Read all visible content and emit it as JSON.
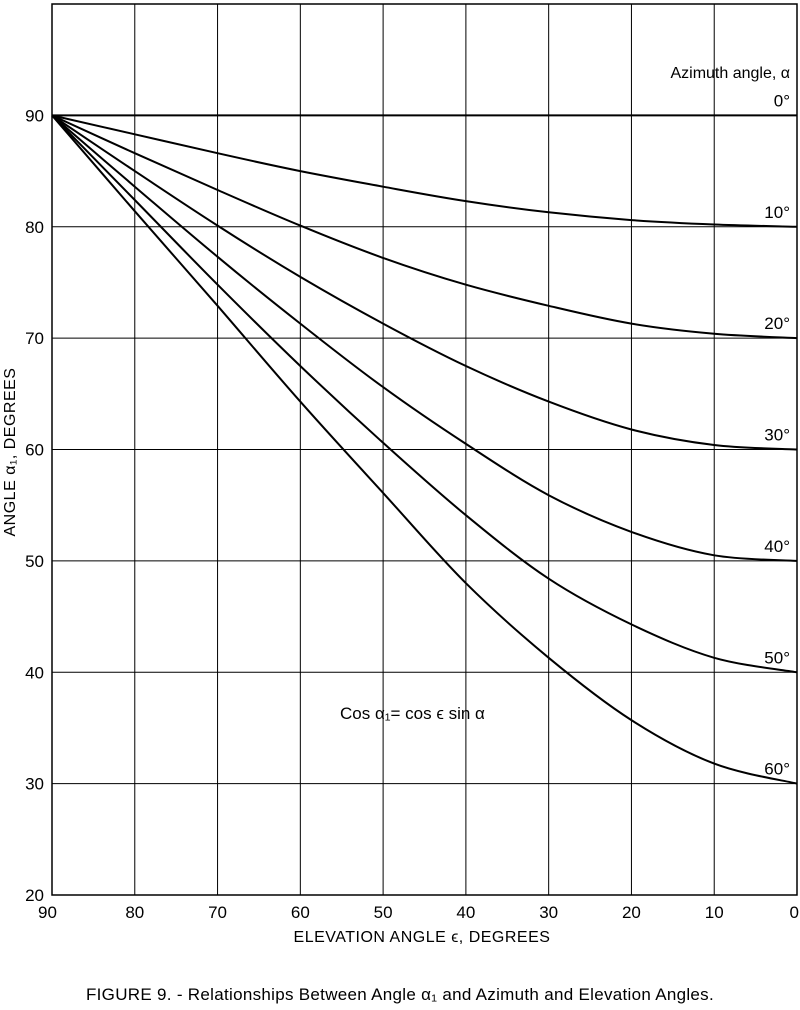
{
  "chart_data": {
    "type": "line",
    "xlabel": "ELEVATION ANGLE ϵ, DEGREES",
    "ylabel": "ANGLE α₁, DEGREES",
    "x_ticks": [
      "90",
      "80",
      "70",
      "60",
      "50",
      "40",
      "30",
      "20",
      "10",
      "0"
    ],
    "y_ticks": [
      "20",
      "30",
      "40",
      "50",
      "60",
      "70",
      "80",
      "90"
    ],
    "xlim": [
      90,
      0
    ],
    "ylim": [
      20,
      100
    ],
    "x_reversed": true,
    "grid": true,
    "legend_title": "Azimuth angle, α",
    "annotation": "Cos α₁= cos ϵ sin α",
    "x": [
      90,
      80,
      70,
      60,
      50,
      40,
      30,
      20,
      10,
      0
    ],
    "series": [
      {
        "name": "0°",
        "values": [
          90,
          90,
          90,
          90,
          90,
          90,
          90,
          90,
          90,
          90
        ]
      },
      {
        "name": "10°",
        "values": [
          90,
          88.3,
          86.6,
          85.0,
          83.6,
          82.3,
          81.3,
          80.6,
          80.2,
          80.0
        ]
      },
      {
        "name": "20°",
        "values": [
          90,
          86.6,
          83.3,
          80.1,
          77.2,
          74.8,
          72.9,
          71.3,
          70.4,
          70.0
        ]
      },
      {
        "name": "30°",
        "values": [
          90,
          85.0,
          80.1,
          75.5,
          71.3,
          67.5,
          64.3,
          61.8,
          60.4,
          60.0
        ]
      },
      {
        "name": "40°",
        "values": [
          90,
          83.6,
          77.3,
          71.3,
          65.6,
          60.5,
          55.9,
          52.6,
          50.5,
          50.0
        ]
      },
      {
        "name": "50°",
        "values": [
          90,
          82.4,
          74.8,
          67.5,
          60.6,
          54.1,
          48.4,
          44.3,
          41.3,
          40.0
        ]
      },
      {
        "name": "60°",
        "values": [
          90,
          81.4,
          72.9,
          64.3,
          56.1,
          48.0,
          41.3,
          35.7,
          31.8,
          30.0
        ]
      }
    ]
  },
  "caption": "FIGURE 9. - Relationships Between Angle α₁ and Azimuth and Elevation Angles."
}
